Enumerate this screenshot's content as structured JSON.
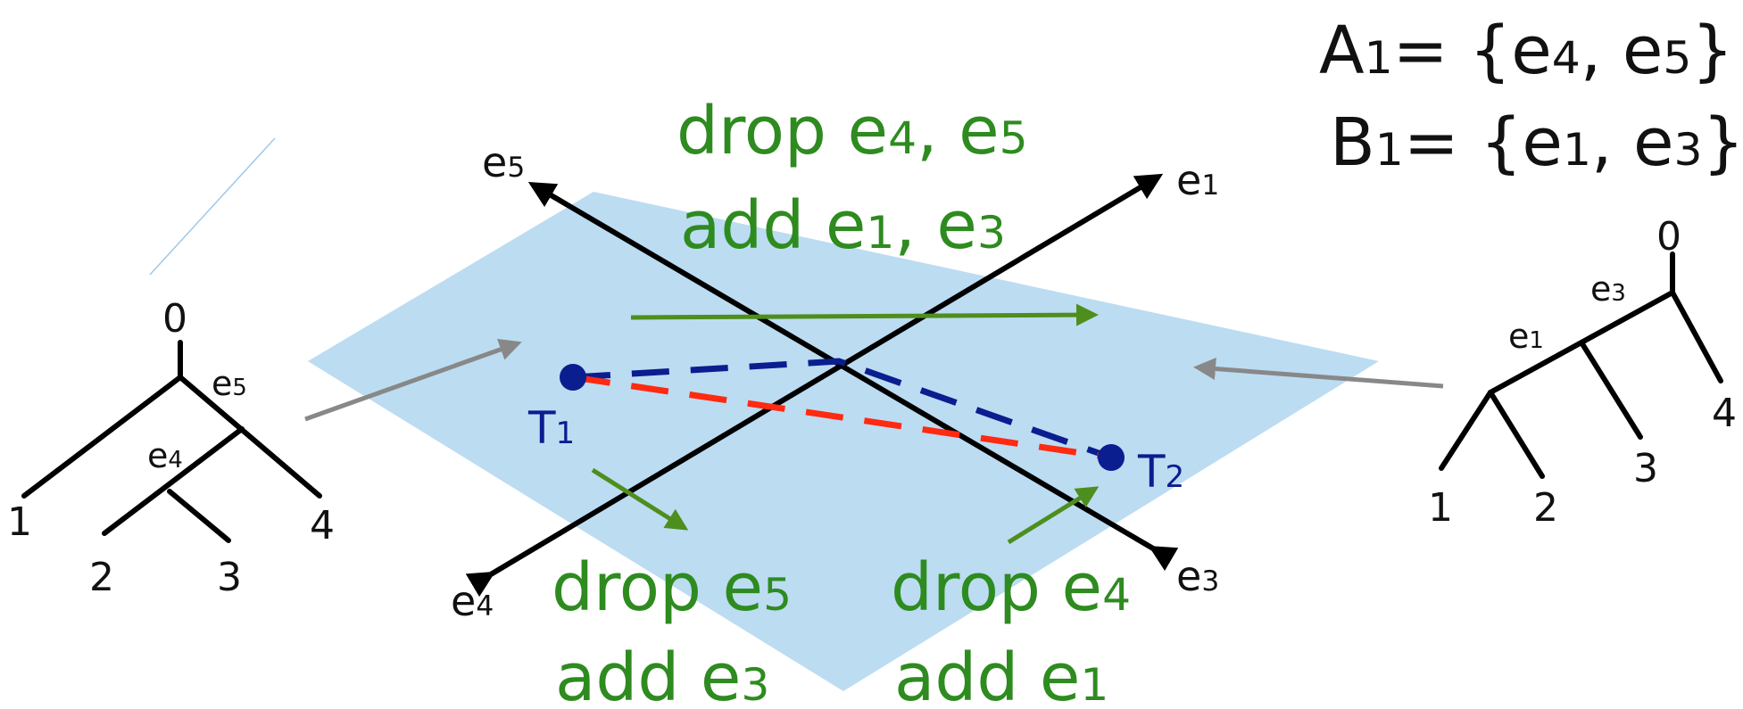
{
  "colors": {
    "plane": "#bcdcf2",
    "edge": "#000000",
    "tree_arrow": "#888888",
    "green": "#2e8b1f",
    "green_arrow": "#4e8e1d",
    "blue": "#0a1e90",
    "red": "#ff2a10",
    "thin_line": "#9ec8ea"
  },
  "sets": {
    "a": {
      "letter": "A",
      "sub": "1",
      "rest": "= {e",
      "s1": "4",
      "mid": ", e",
      "s2": "5",
      "close": "}"
    },
    "b": {
      "letter": "B",
      "sub": "1",
      "rest": "= {e",
      "s1": "1",
      "mid": ", e",
      "s2": "3",
      "close": "}"
    }
  },
  "axes": {
    "e5": {
      "base": "e",
      "sub": "5"
    },
    "e1": {
      "base": "e",
      "sub": "1"
    },
    "e4": {
      "base": "e",
      "sub": "4"
    },
    "e3": {
      "base": "e",
      "sub": "3"
    }
  },
  "moves": {
    "top": {
      "line1": {
        "a": "drop e",
        "s1": "4",
        "b": ", e",
        "s2": "5"
      },
      "line2": {
        "a": "add e",
        "s1": "1",
        "b": ", e",
        "s2": "3"
      }
    },
    "bottom_left": {
      "line1": {
        "a": "drop e",
        "s1": "5"
      },
      "line2": {
        "a": "add e",
        "s1": "3"
      }
    },
    "bottom_right": {
      "line1": {
        "a": "drop e",
        "s1": "4"
      },
      "line2": {
        "a": "add e",
        "s1": "1"
      }
    }
  },
  "points": {
    "t1": {
      "base": "T",
      "sub": "1"
    },
    "t2": {
      "base": "T",
      "sub": "2"
    }
  },
  "left_tree": {
    "root": "0",
    "leaves": [
      "1",
      "2",
      "3",
      "4"
    ],
    "edge_a": {
      "base": "e",
      "sub": "5"
    },
    "edge_b": {
      "base": "e",
      "sub": "4"
    }
  },
  "right_tree": {
    "root": "0",
    "leaves": [
      "1",
      "2",
      "3",
      "4"
    ],
    "edge_a": {
      "base": "e",
      "sub": "3"
    },
    "edge_b": {
      "base": "e",
      "sub": "1"
    }
  }
}
